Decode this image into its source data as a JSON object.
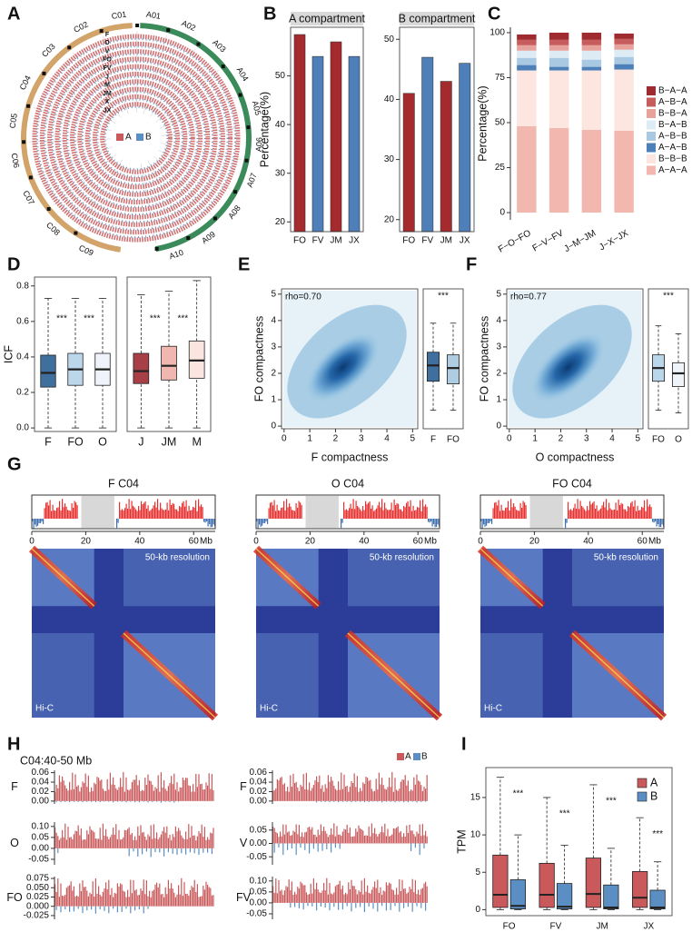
{
  "panels": [
    "A",
    "B",
    "C",
    "D",
    "E",
    "F",
    "G",
    "H",
    "I"
  ],
  "chart_data": [
    {
      "type": "circos",
      "chromosomes": [
        "A01",
        "A02",
        "A03",
        "A04",
        "A05",
        "A06",
        "A07",
        "A08",
        "A09",
        "A10",
        "C01",
        "C02",
        "C03",
        "C04",
        "C05",
        "C06",
        "C07",
        "C08",
        "C09"
      ],
      "tracks": [
        "F",
        "O",
        "V",
        "FO",
        "FV",
        "J",
        "M",
        "JM",
        "X",
        "JX"
      ],
      "series": [
        {
          "name": "A",
          "color": "#c9595a"
        },
        {
          "name": "B",
          "color": "#5b8fc4"
        }
      ]
    },
    {
      "type": "bar",
      "title": "A compartment",
      "y_label": "Percentage(%)",
      "categories": [
        "FO",
        "FV",
        "JM",
        "JX"
      ],
      "values": [
        58.5,
        54,
        57,
        54
      ],
      "colors": [
        "#a52a2e",
        "#4f7fb8",
        "#a52a2e",
        "#4f7fb8"
      ],
      "ylim": [
        18,
        60
      ],
      "yticks": [
        20,
        30,
        40,
        50
      ]
    },
    {
      "type": "bar",
      "title": "B compartment",
      "categories": [
        "FO",
        "FV",
        "JM",
        "JX"
      ],
      "values": [
        41,
        47,
        43,
        46
      ],
      "colors": [
        "#a52a2e",
        "#4f7fb8",
        "#a52a2e",
        "#4f7fb8"
      ],
      "ylim": [
        18,
        52
      ],
      "yticks": [
        20,
        30,
        40,
        50
      ]
    },
    {
      "type": "stacked_bar",
      "y_label": "Percentage(%)",
      "categories": [
        "F−O−FO",
        "F−V−FV",
        "J−M−JM",
        "J−X−JX"
      ],
      "ylim": [
        -4,
        103
      ],
      "yticks": [
        0,
        25,
        50,
        75,
        100
      ],
      "series": [
        {
          "name": "A−A−A",
          "color": "#f2b7ae",
          "values": [
            48,
            47,
            46,
            45.5
          ]
        },
        {
          "name": "B−B−B",
          "color": "#fce6df",
          "values": [
            31,
            32,
            33,
            34
          ]
        },
        {
          "name": "A−A−B",
          "color": "#4d80b8",
          "values": [
            3,
            2,
            2,
            3
          ]
        },
        {
          "name": "A−B−B",
          "color": "#a9c9e3",
          "values": [
            4,
            5,
            4,
            4
          ]
        },
        {
          "name": "B−A−B",
          "color": "#ddebf5",
          "values": [
            4,
            4,
            5,
            4
          ]
        },
        {
          "name": "B−B−A",
          "color": "#e8a29c",
          "values": [
            3,
            3,
            3,
            3
          ]
        },
        {
          "name": "A−B−A",
          "color": "#c75c5c",
          "values": [
            3,
            3,
            3,
            3
          ]
        },
        {
          "name": "B−A−A",
          "color": "#9f2a2f",
          "values": [
            3,
            4,
            4,
            3
          ]
        }
      ]
    },
    {
      "type": "box",
      "y_label": "ICF",
      "categories": [
        "F",
        "FO",
        "O"
      ],
      "colors": [
        "#3e6f9e",
        "#bcd7ea",
        "#eef4fa"
      ],
      "stats": {
        "min": [
          0,
          0,
          0
        ],
        "q1": [
          0.23,
          0.24,
          0.24
        ],
        "median": [
          0.31,
          0.33,
          0.33
        ],
        "q3": [
          0.41,
          0.42,
          0.42
        ],
        "max": [
          0.73,
          0.73,
          0.73
        ]
      },
      "ylim": [
        -0.02,
        0.85
      ],
      "yticks": [
        {
          "value": 0,
          "label": "0.0"
        },
        {
          "value": 0.2,
          "label": "0.2"
        },
        {
          "value": 0.4,
          "label": "0.4"
        },
        {
          "value": 0.6,
          "label": "0.6"
        },
        {
          "value": 0.8,
          "label": "0.8"
        }
      ],
      "annotations": [
        "***",
        "***"
      ]
    },
    {
      "type": "box",
      "categories": [
        "J",
        "JM",
        "M"
      ],
      "colors": [
        "#a83f47",
        "#f0b6b0",
        "#fbe5e0"
      ],
      "stats": {
        "min": [
          0,
          0,
          0
        ],
        "q1": [
          0.25,
          0.27,
          0.28
        ],
        "median": [
          0.32,
          0.35,
          0.38
        ],
        "q3": [
          0.42,
          0.46,
          0.49
        ],
        "max": [
          0.75,
          0.77,
          0.83
        ]
      },
      "ylim": [
        -0.02,
        0.85
      ],
      "annotations": [
        "***",
        "***"
      ]
    },
    {
      "type": "scatter",
      "annotation": "rho=0.70",
      "x_label": "F compactness",
      "y_label": "FO compactness",
      "xlim": [
        -0.1,
        5.2
      ],
      "ylim": [
        -0.1,
        5.2
      ],
      "xticks": [
        0,
        1,
        2,
        3,
        4,
        5
      ],
      "yticks": [
        0,
        1,
        2,
        3,
        4,
        5
      ],
      "color": "#9cc7e2"
    },
    {
      "type": "box",
      "categories": [
        "F",
        "FO"
      ],
      "colors": [
        "#3e6f9e",
        "#aecde3"
      ],
      "stats": {
        "min": [
          0.6,
          0.6
        ],
        "q1": [
          1.7,
          1.6
        ],
        "median": [
          2.3,
          2.2
        ],
        "q3": [
          2.8,
          2.7
        ],
        "max": [
          3.9,
          3.9
        ]
      },
      "ylim": [
        -0.1,
        5.2
      ],
      "annotations": [
        "***"
      ]
    },
    {
      "type": "scatter",
      "annotation": "rho=0.77",
      "x_label": "O compactness",
      "y_label": "FO compactness",
      "xlim": [
        -0.1,
        5.2
      ],
      "ylim": [
        -0.1,
        5.2
      ],
      "xticks": [
        0,
        1,
        2,
        3,
        4,
        5
      ],
      "yticks": [
        0,
        1,
        2,
        3,
        4,
        5
      ],
      "color": "#9cc7e2"
    },
    {
      "type": "box",
      "categories": [
        "FO",
        "O"
      ],
      "colors": [
        "#b9d6ea",
        "#eef4fa"
      ],
      "stats": {
        "min": [
          0.6,
          0.5
        ],
        "q1": [
          1.7,
          1.5
        ],
        "median": [
          2.2,
          2.0
        ],
        "q3": [
          2.7,
          2.4
        ],
        "max": [
          3.8,
          3.5
        ]
      },
      "ylim": [
        -0.1,
        5.2
      ],
      "annotations": [
        "***"
      ]
    },
    {
      "type": "heatmap",
      "title": "F C04",
      "xlim": [
        0,
        68
      ],
      "xticks": [
        0,
        20,
        40,
        60
      ],
      "x_unit": "Mb",
      "resolution": "50-kb resolution",
      "label": "Hi-C"
    },
    {
      "type": "heatmap",
      "title": "O C04",
      "xlim": [
        0,
        68
      ],
      "xticks": [
        0,
        20,
        40,
        60
      ],
      "x_unit": "Mb",
      "resolution": "50-kb resolution",
      "label": "Hi-C"
    },
    {
      "type": "heatmap",
      "title": "FO C04",
      "xlim": [
        0,
        68
      ],
      "xticks": [
        0,
        20,
        40,
        60
      ],
      "x_unit": "Mb",
      "resolution": "50-kb resolution",
      "label": "Hi-C"
    },
    {
      "type": "track",
      "title": "C04:40-50 Mb",
      "series": [
        {
          "name": "A",
          "color": "#c9595a"
        },
        {
          "name": "B",
          "color": "#5b8fc4"
        }
      ],
      "tracks": [
        {
          "label": "F",
          "ylim": [
            -0.006,
            0.065
          ],
          "yticks": [
            {
              "value": 0,
              "label": "0.00"
            },
            {
              "value": 0.02,
              "label": "0.02"
            },
            {
              "value": 0.04,
              "label": "0.04"
            },
            {
              "value": 0.06,
              "label": "0.06"
            }
          ]
        },
        {
          "label": "O",
          "ylim": [
            -0.075,
            0.12
          ],
          "yticks": [
            {
              "value": -0.05,
              "label": "-0.05"
            },
            {
              "value": 0,
              "label": "0.00"
            },
            {
              "value": 0.05,
              "label": "0.05"
            },
            {
              "value": 0.1,
              "label": "0.10"
            }
          ]
        },
        {
          "label": "FO",
          "ylim": [
            -0.035,
            0.08
          ],
          "yticks": [
            {
              "value": -0.025,
              "label": "-0.025"
            },
            {
              "value": 0,
              "label": "0.000"
            },
            {
              "value": 0.025,
              "label": "0.025"
            },
            {
              "value": 0.05,
              "label": "0.050"
            },
            {
              "value": 0.075,
              "label": "0.075"
            }
          ]
        },
        {
          "label": "F",
          "ylim": [
            -0.006,
            0.065
          ],
          "yticks": [
            {
              "value": 0,
              "label": "0.00"
            },
            {
              "value": 0.02,
              "label": "0.02"
            },
            {
              "value": 0.04,
              "label": "0.04"
            },
            {
              "value": 0.06,
              "label": "0.06"
            }
          ]
        },
        {
          "label": "V",
          "ylim": [
            -0.08,
            0.08
          ],
          "yticks": [
            {
              "value": -0.05,
              "label": "-0.05"
            },
            {
              "value": 0,
              "label": "0.00"
            },
            {
              "value": 0.05,
              "label": "0.05"
            }
          ]
        },
        {
          "label": "FV",
          "ylim": [
            -0.075,
            0.12
          ],
          "yticks": [
            {
              "value": -0.05,
              "label": "-0.05"
            },
            {
              "value": 0,
              "label": "0.00"
            },
            {
              "value": 0.05,
              "label": "0.05"
            },
            {
              "value": 0.1,
              "label": "0.10"
            }
          ]
        }
      ]
    },
    {
      "type": "grouped_box",
      "y_label": "TPM",
      "categories": [
        "FO",
        "FV",
        "JM",
        "JX"
      ],
      "ylim": [
        -0.8,
        19
      ],
      "yticks": [
        0,
        5,
        10,
        15
      ],
      "series": [
        {
          "name": "A",
          "color": "#c9595a",
          "min": [
            0,
            0,
            0,
            0
          ],
          "q1": [
            0.3,
            0.3,
            0.3,
            0.3
          ],
          "median": [
            2.0,
            2.0,
            2.1,
            1.6
          ],
          "q3": [
            7.3,
            6.2,
            6.9,
            5.1
          ],
          "max": [
            17.7,
            15.0,
            16.7,
            12.3
          ]
        },
        {
          "name": "B",
          "color": "#5b8fc4",
          "min": [
            0,
            0,
            0,
            0
          ],
          "q1": [
            0.1,
            0.1,
            0.1,
            0.1
          ],
          "median": [
            0.5,
            0.4,
            0.3,
            0.3
          ],
          "q3": [
            4.0,
            3.5,
            3.3,
            2.6
          ],
          "max": [
            10.0,
            8.6,
            8.2,
            6.4
          ]
        }
      ],
      "annotations": [
        "***",
        "***",
        "***",
        "***"
      ]
    }
  ]
}
